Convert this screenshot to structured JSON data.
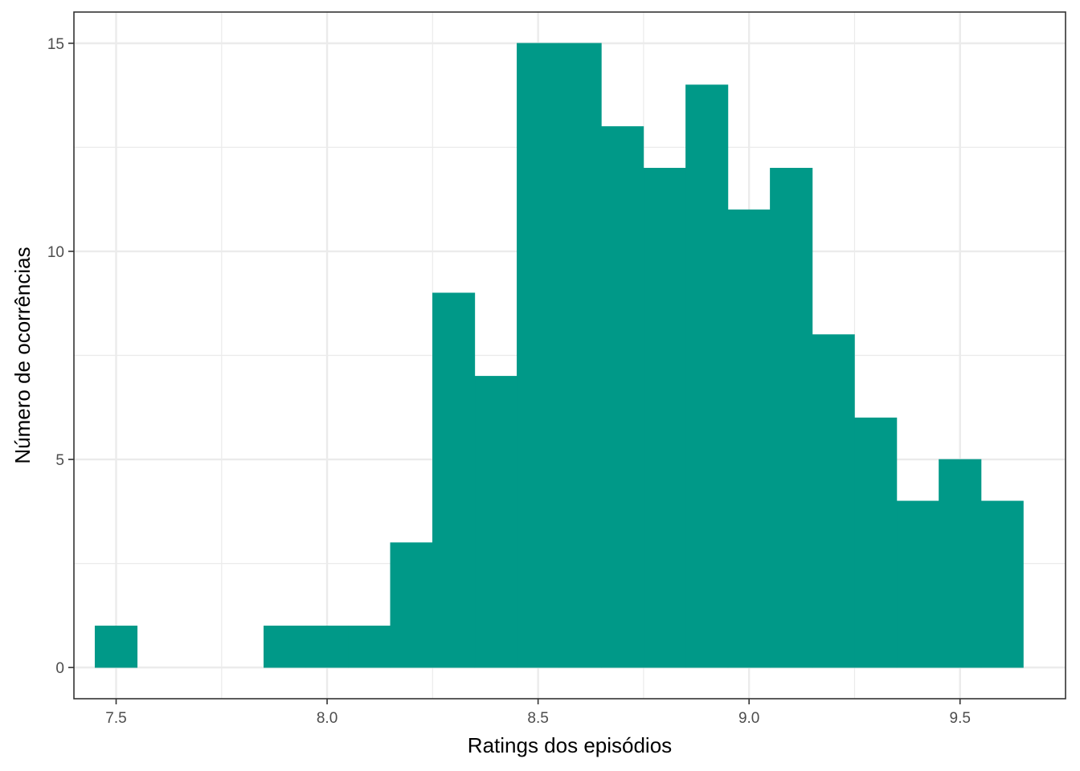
{
  "chart_data": {
    "type": "bar",
    "subtype": "histogram",
    "xlabel": "Ratings dos episódios",
    "ylabel": "Número de ocorrências",
    "xlim": [
      7.4,
      9.75
    ],
    "ylim": [
      -0.75,
      15.75
    ],
    "grid": true,
    "legend": "none",
    "x_ticks": [
      7.5,
      8.0,
      8.5,
      9.0,
      9.5
    ],
    "x_tick_labels": [
      "7.5",
      "8.0",
      "8.5",
      "9.0",
      "9.5"
    ],
    "y_ticks": [
      0,
      5,
      10,
      15
    ],
    "y_tick_labels": [
      "0",
      "5",
      "10",
      "15"
    ],
    "bin_width": 0.1,
    "bin_centers": [
      7.5,
      7.9,
      8.0,
      8.1,
      8.2,
      8.3,
      8.4,
      8.5,
      8.6,
      8.7,
      8.8,
      8.9,
      9.0,
      9.1,
      9.2,
      9.3,
      9.4,
      9.5,
      9.6
    ],
    "values": [
      1,
      1,
      1,
      1,
      3,
      9,
      7,
      15,
      15,
      13,
      12,
      14,
      11,
      12,
      8,
      6,
      4,
      5,
      4
    ],
    "colors": {
      "fill": "#009988",
      "grid": "#ebebeb",
      "panel_border": "#333333",
      "tick_text": "#4d4d4d"
    }
  }
}
